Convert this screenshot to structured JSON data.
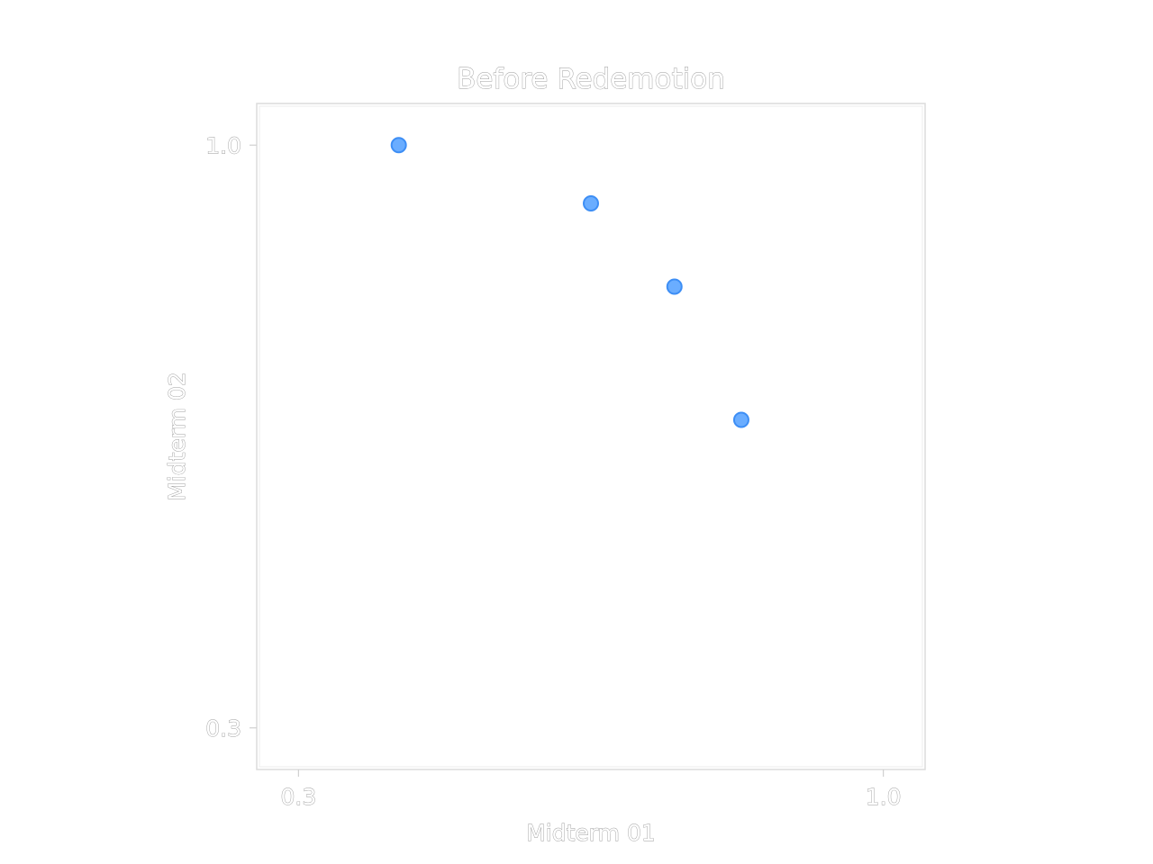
{
  "chart_data": {
    "type": "scatter",
    "title": "Before Redemotion",
    "xlabel": "Midterm 01",
    "ylabel": "Midterm 02",
    "xlim": [
      0.25,
      1.05
    ],
    "ylim": [
      0.25,
      1.05
    ],
    "xticks": [
      0.3,
      1.0
    ],
    "yticks": [
      0.3,
      1.0
    ],
    "xtick_labels": [
      "0.3",
      "1.0"
    ],
    "ytick_labels": [
      "0.3",
      "1.0"
    ],
    "grid": false,
    "series": [
      {
        "x": [
          0.42,
          0.65,
          0.75,
          0.83
        ],
        "y": [
          1.0,
          0.93,
          0.83,
          0.67
        ],
        "color": "#6aadff",
        "edge_color": "#3d8ef5"
      }
    ]
  }
}
